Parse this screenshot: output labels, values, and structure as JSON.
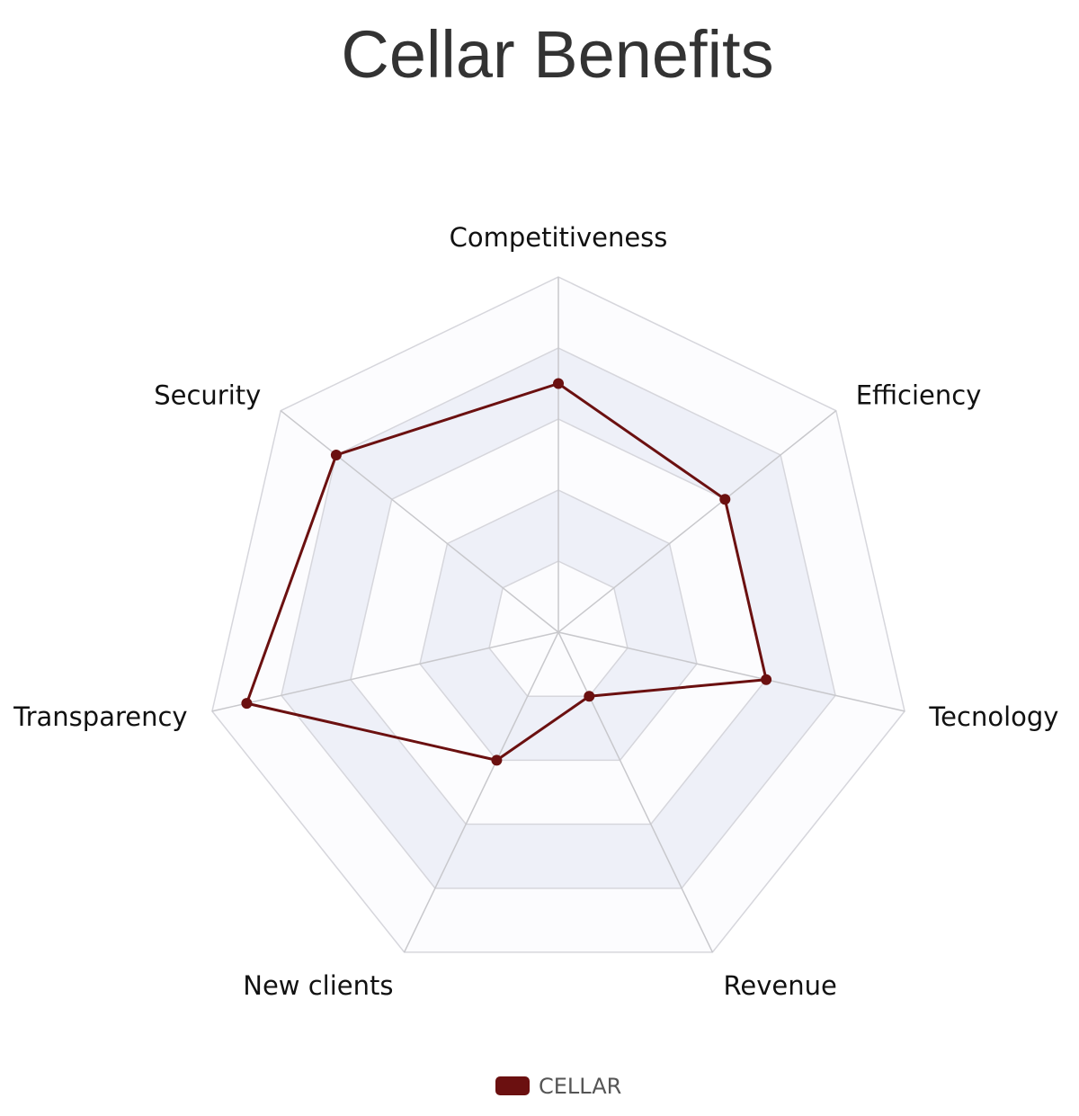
{
  "chart_data": {
    "type": "radar",
    "title": "Cellar Benefits",
    "categories": [
      "Competitiveness",
      "Efficiency",
      "Tecnology",
      "Revenue",
      "New clients",
      "Transparency",
      "Security"
    ],
    "series": [
      {
        "name": "CELLAR",
        "values": [
          70,
          60,
          60,
          20,
          40,
          90,
          80
        ]
      }
    ],
    "rlim": [
      0,
      100
    ],
    "ring_count": 5,
    "legend": "bottom",
    "colors": {
      "series": "#6b1010",
      "grid": "#d6d6dc",
      "band": "#eef0f8",
      "axis": "#c8c8cc"
    }
  }
}
